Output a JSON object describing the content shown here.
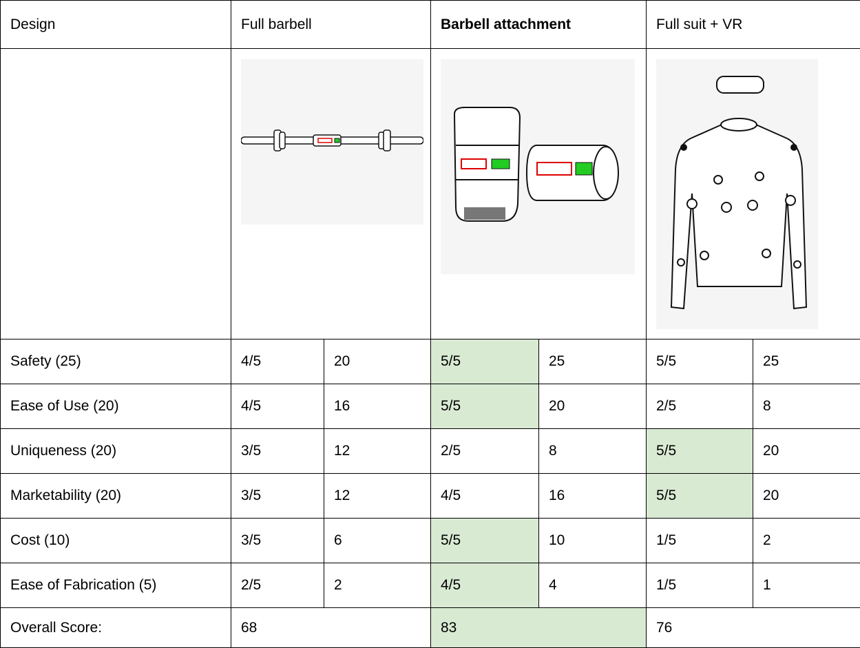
{
  "table": {
    "header": [
      "Design",
      "Full barbell",
      "Barbell attachment",
      "Full suit + VR"
    ],
    "rows": [
      {
        "label": "Safety (25)",
        "cells": [
          "4/5",
          20,
          "5/5",
          25,
          "5/5",
          25
        ]
      },
      {
        "label": "Ease of Use (20)",
        "cells": [
          "4/5",
          16,
          "5/5",
          20,
          "2/5",
          8
        ]
      },
      {
        "label": "Uniqueness (20)",
        "cells": [
          "3/5",
          12,
          "2/5",
          8,
          "5/5",
          20
        ]
      },
      {
        "label": "Marketability (20)",
        "cells": [
          "3/5",
          12,
          "4/5",
          16,
          "5/5",
          20
        ]
      },
      {
        "label": "Cost (10)",
        "cells": [
          "3/5",
          6,
          "5/5",
          10,
          "1/5",
          2
        ]
      },
      {
        "label": "Ease of Fabrication (5)",
        "cells": [
          "2/5",
          2,
          "4/5",
          4,
          "1/5",
          1
        ]
      }
    ],
    "overall": {
      "label": "Overall Score:",
      "values": [
        68,
        83,
        76
      ]
    }
  }
}
